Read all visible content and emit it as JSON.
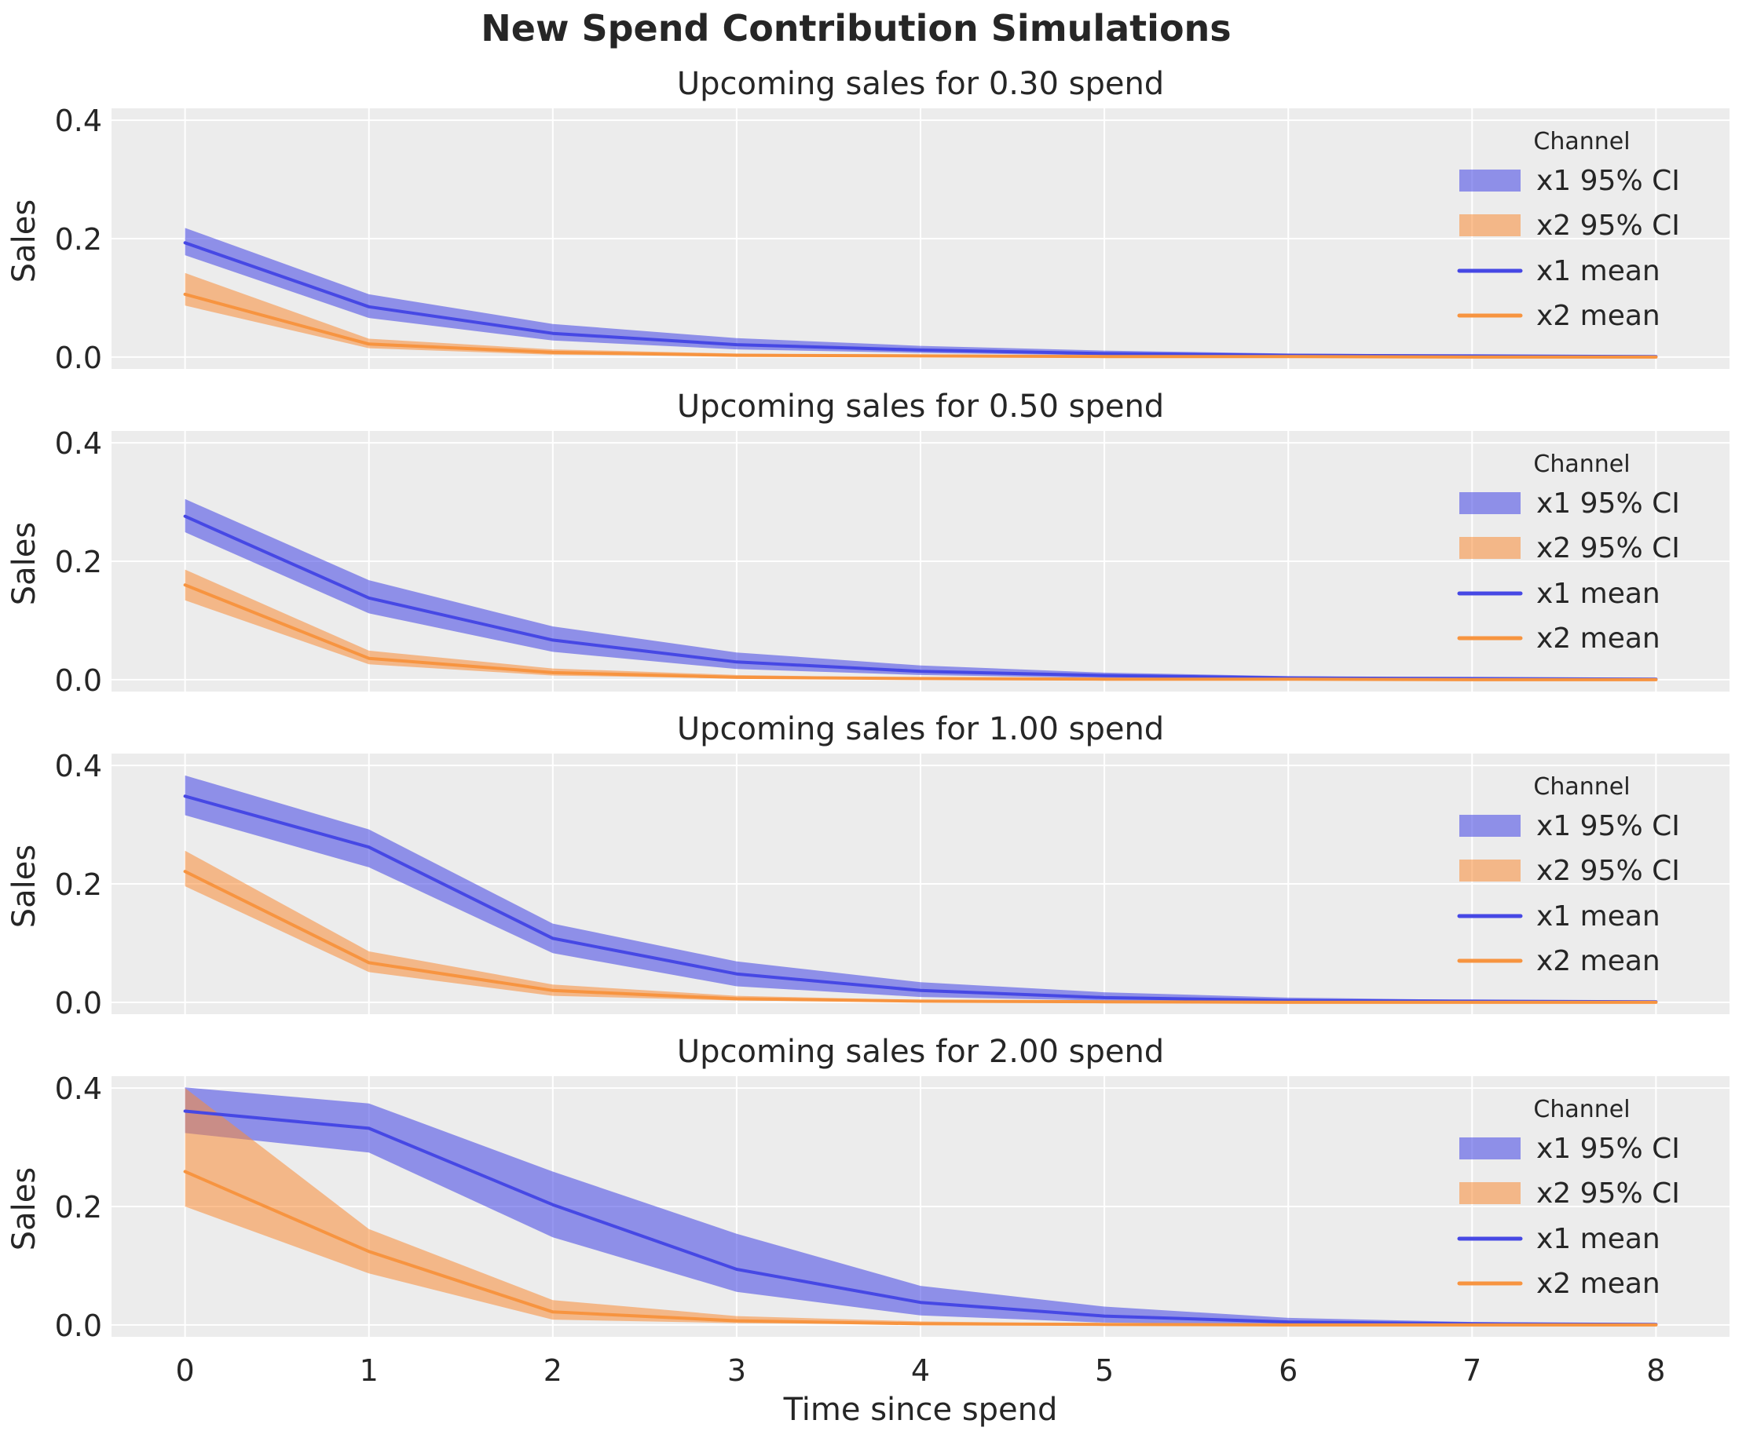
{
  "figure": {
    "suptitle": "New Spend Contribution Simulations",
    "xlabel": "Time since spend",
    "ylabel": "Sales",
    "background_color": "#ffffff",
    "axes_background_color": "#ececec",
    "grid_color": "#ffffff",
    "text_color": "#262626",
    "title_color": "#141414",
    "xtick_labels": [
      "0",
      "1",
      "2",
      "3",
      "4",
      "5",
      "6",
      "7",
      "8"
    ],
    "ytick_labels": [
      "0.0",
      "0.2",
      "0.4"
    ],
    "yticks": [
      0.0,
      0.2,
      0.4
    ],
    "xticks": [
      0,
      1,
      2,
      3,
      4,
      5,
      6,
      7,
      8
    ]
  },
  "legend": {
    "title": "Channel",
    "entries": [
      {
        "label": "x1 95% CI",
        "type": "patch",
        "color": "rgba(70,72,228,0.57)"
      },
      {
        "label": "x2 95% CI",
        "type": "patch",
        "color": "rgba(250,140,55,0.55)"
      },
      {
        "label": "x1 mean",
        "type": "line",
        "color": "#4648e4"
      },
      {
        "label": "x2 mean",
        "type": "line",
        "color": "#f79440"
      }
    ]
  },
  "chart_data": [
    {
      "type": "line",
      "title": "Upcoming sales for 0.30 spend",
      "xlabel": "Time since spend",
      "ylabel": "Sales",
      "xlim": [
        -0.4,
        8.4
      ],
      "ylim": [
        -0.02,
        0.42
      ],
      "grid": true,
      "legend_position": "upper right",
      "x": [
        0,
        1,
        2,
        3,
        4,
        5,
        6,
        7,
        8
      ],
      "series": [
        {
          "name": "x1 mean",
          "ci_label": "x1 95% CI",
          "color": "#4648e4",
          "band_color": "rgba(70,72,228,0.57)",
          "values": [
            0.193,
            0.085,
            0.04,
            0.021,
            0.012,
            0.006,
            0.003,
            0.002,
            0.001
          ],
          "ci_lower": [
            0.172,
            0.066,
            0.028,
            0.013,
            0.007,
            0.003,
            0.002,
            0.001,
            0.001
          ],
          "ci_upper": [
            0.218,
            0.106,
            0.056,
            0.032,
            0.019,
            0.011,
            0.006,
            0.004,
            0.002
          ]
        },
        {
          "name": "x2 mean",
          "ci_label": "x2 95% CI",
          "color": "#f79440",
          "band_color": "rgba(250,140,55,0.55)",
          "values": [
            0.106,
            0.022,
            0.008,
            0.003,
            0.002,
            0.001,
            0.001,
            0.0,
            0.0
          ],
          "ci_lower": [
            0.087,
            0.015,
            0.004,
            0.002,
            0.001,
            0.0,
            0.0,
            0.0,
            0.0
          ],
          "ci_upper": [
            0.142,
            0.031,
            0.013,
            0.006,
            0.003,
            0.002,
            0.001,
            0.001,
            0.0
          ]
        }
      ]
    },
    {
      "type": "line",
      "title": "Upcoming sales for 0.50 spend",
      "xlabel": "Time since spend",
      "ylabel": "Sales",
      "xlim": [
        -0.4,
        8.4
      ],
      "ylim": [
        -0.02,
        0.42
      ],
      "grid": true,
      "legend_position": "upper right",
      "x": [
        0,
        1,
        2,
        3,
        4,
        5,
        6,
        7,
        8
      ],
      "series": [
        {
          "name": "x1 mean",
          "ci_label": "x1 95% CI",
          "color": "#4648e4",
          "band_color": "rgba(70,72,228,0.57)",
          "values": [
            0.276,
            0.138,
            0.067,
            0.03,
            0.014,
            0.007,
            0.003,
            0.002,
            0.001
          ],
          "ci_lower": [
            0.249,
            0.112,
            0.047,
            0.018,
            0.008,
            0.003,
            0.001,
            0.001,
            0.0
          ],
          "ci_upper": [
            0.305,
            0.168,
            0.09,
            0.046,
            0.024,
            0.012,
            0.006,
            0.003,
            0.002
          ]
        },
        {
          "name": "x2 mean",
          "ci_label": "x2 95% CI",
          "color": "#f79440",
          "band_color": "rgba(250,140,55,0.55)",
          "values": [
            0.16,
            0.036,
            0.012,
            0.004,
            0.002,
            0.001,
            0.001,
            0.0,
            0.0
          ],
          "ci_lower": [
            0.134,
            0.026,
            0.007,
            0.002,
            0.001,
            0.0,
            0.0,
            0.0,
            0.0
          ],
          "ci_upper": [
            0.186,
            0.049,
            0.019,
            0.008,
            0.003,
            0.001,
            0.001,
            0.0,
            0.0
          ]
        }
      ]
    },
    {
      "type": "line",
      "title": "Upcoming sales for 1.00 spend",
      "xlabel": "Time since spend",
      "ylabel": "Sales",
      "xlim": [
        -0.4,
        8.4
      ],
      "ylim": [
        -0.02,
        0.42
      ],
      "grid": true,
      "legend_position": "upper right",
      "x": [
        0,
        1,
        2,
        3,
        4,
        5,
        6,
        7,
        8
      ],
      "series": [
        {
          "name": "x1 mean",
          "ci_label": "x1 95% CI",
          "color": "#4648e4",
          "band_color": "rgba(70,72,228,0.57)",
          "values": [
            0.348,
            0.262,
            0.108,
            0.048,
            0.02,
            0.008,
            0.003,
            0.002,
            0.001
          ],
          "ci_lower": [
            0.316,
            0.228,
            0.083,
            0.027,
            0.009,
            0.003,
            0.001,
            0.0,
            0.0
          ],
          "ci_upper": [
            0.383,
            0.292,
            0.133,
            0.069,
            0.034,
            0.017,
            0.008,
            0.004,
            0.002
          ]
        },
        {
          "name": "x2 mean",
          "ci_label": "x2 95% CI",
          "color": "#f79440",
          "band_color": "rgba(250,140,55,0.55)",
          "values": [
            0.221,
            0.067,
            0.02,
            0.006,
            0.002,
            0.001,
            0.0,
            0.0,
            0.0
          ],
          "ci_lower": [
            0.196,
            0.051,
            0.011,
            0.003,
            0.001,
            0.0,
            0.0,
            0.0,
            0.0
          ],
          "ci_upper": [
            0.256,
            0.086,
            0.03,
            0.011,
            0.004,
            0.002,
            0.001,
            0.0,
            0.0
          ]
        }
      ]
    },
    {
      "type": "line",
      "title": "Upcoming sales for 2.00 spend",
      "xlabel": "Time since spend",
      "ylabel": "Sales",
      "xlim": [
        -0.4,
        8.4
      ],
      "ylim": [
        -0.02,
        0.42
      ],
      "grid": true,
      "legend_position": "upper right",
      "x": [
        0,
        1,
        2,
        3,
        4,
        5,
        6,
        7,
        8
      ],
      "series": [
        {
          "name": "x1 mean",
          "ci_label": "x1 95% CI",
          "color": "#4648e4",
          "band_color": "rgba(70,72,228,0.57)",
          "values": [
            0.361,
            0.332,
            0.203,
            0.094,
            0.038,
            0.015,
            0.005,
            0.002,
            0.001
          ],
          "ci_lower": [
            0.324,
            0.291,
            0.148,
            0.056,
            0.016,
            0.004,
            0.001,
            0.0,
            0.0
          ],
          "ci_upper": [
            0.401,
            0.374,
            0.259,
            0.154,
            0.066,
            0.031,
            0.012,
            0.005,
            0.002
          ]
        },
        {
          "name": "x2 mean",
          "ci_label": "x2 95% CI",
          "color": "#f79440",
          "band_color": "rgba(250,140,55,0.55)",
          "values": [
            0.259,
            0.124,
            0.022,
            0.007,
            0.002,
            0.001,
            0.0,
            0.0,
            0.0
          ],
          "ci_lower": [
            0.2,
            0.087,
            0.009,
            0.003,
            0.001,
            0.0,
            0.0,
            0.0,
            0.0
          ],
          "ci_upper": [
            0.4,
            0.162,
            0.042,
            0.015,
            0.006,
            0.002,
            0.001,
            0.001,
            0.0
          ]
        }
      ]
    }
  ]
}
